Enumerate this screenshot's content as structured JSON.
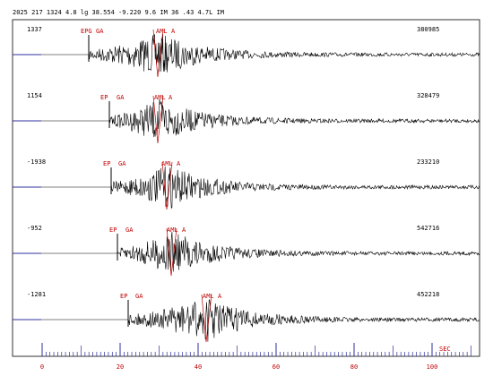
{
  "header": {
    "title": "2025  217 1324  4.8 lg 38.554  -9.220  9.6   IM 36 .43 4.7L IM"
  },
  "traces": [
    {
      "amplitude": "1337",
      "count": "380985",
      "picks": [
        "EPG",
        "GA",
        "AML",
        "A"
      ]
    },
    {
      "amplitude": "1154",
      "count": "328479",
      "picks": [
        "EP",
        "GA",
        "AML",
        "A"
      ]
    },
    {
      "amplitude": "-1938",
      "count": "233210",
      "picks": [
        "EP",
        "GA",
        "AML",
        "A"
      ]
    },
    {
      "amplitude": "-952",
      "count": "542716",
      "picks": [
        "EP",
        "GA",
        "AML",
        "A"
      ]
    },
    {
      "amplitude": "-1281",
      "count": "452218",
      "picks": [
        "EP",
        "GA",
        "AML",
        "A"
      ]
    }
  ],
  "axis": {
    "ticks": [
      0,
      20,
      40,
      60,
      80,
      100
    ],
    "unit": "SEC"
  }
}
